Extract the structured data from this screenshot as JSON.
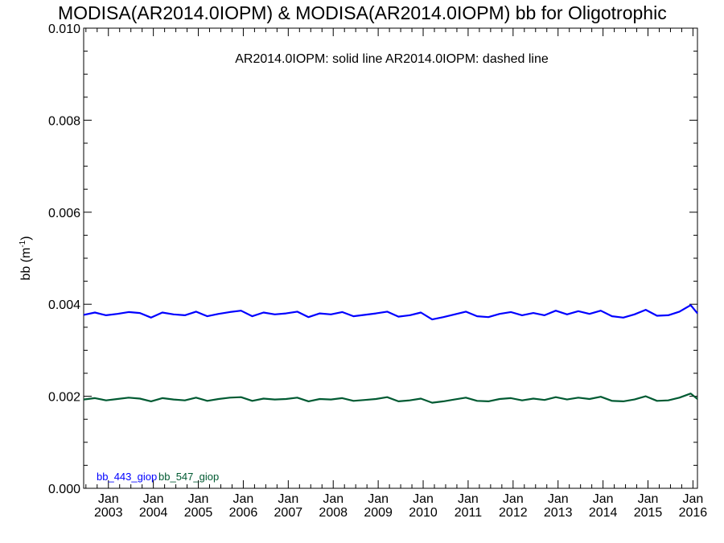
{
  "chart_data": {
    "type": "line",
    "title": "MODISA(AR2014.0IOPM) & MODISA(AR2014.0IOPM)  bb for Oligotrophic",
    "annotation": "AR2014.0IOPM: solid line   AR2014.0IOPM: dashed line",
    "ylabel": "bb (m",
    "ylabel_sup": "-1",
    "ylabel_close": ")",
    "xlabel": "",
    "xlim": [
      2002.45,
      2016.1
    ],
    "ylim": [
      0.0,
      0.01
    ],
    "y_ticks": [
      "0.000",
      "0.002",
      "0.004",
      "0.006",
      "0.008",
      "0.010"
    ],
    "x_tick_month": "Jan",
    "x_ticks": [
      "2003",
      "2004",
      "2005",
      "2006",
      "2007",
      "2008",
      "2009",
      "2010",
      "2011",
      "2012",
      "2013",
      "2014",
      "2015",
      "2016"
    ],
    "legend_placement": "bottom-left",
    "grid": false,
    "series": [
      {
        "name": "bb_443_giop",
        "color": "#0000ff",
        "style": "solid",
        "x": [
          2002.45,
          2002.7,
          2002.95,
          2003.2,
          2003.45,
          2003.7,
          2003.95,
          2004.2,
          2004.45,
          2004.7,
          2004.95,
          2005.2,
          2005.45,
          2005.7,
          2005.95,
          2006.2,
          2006.45,
          2006.7,
          2006.95,
          2007.2,
          2007.45,
          2007.7,
          2007.95,
          2008.2,
          2008.45,
          2008.7,
          2008.95,
          2009.2,
          2009.45,
          2009.7,
          2009.95,
          2010.2,
          2010.45,
          2010.7,
          2010.95,
          2011.2,
          2011.45,
          2011.7,
          2011.95,
          2012.2,
          2012.45,
          2012.7,
          2012.95,
          2013.2,
          2013.45,
          2013.7,
          2013.95,
          2014.2,
          2014.45,
          2014.7,
          2014.95,
          2015.2,
          2015.45,
          2015.7,
          2015.95,
          2016.1
        ],
        "values": [
          0.00377,
          0.00382,
          0.00376,
          0.00379,
          0.00383,
          0.00381,
          0.00371,
          0.00382,
          0.00378,
          0.00376,
          0.00384,
          0.00374,
          0.00379,
          0.00383,
          0.00386,
          0.00374,
          0.00382,
          0.00378,
          0.0038,
          0.00384,
          0.00372,
          0.0038,
          0.00378,
          0.00383,
          0.00374,
          0.00377,
          0.0038,
          0.00384,
          0.00373,
          0.00376,
          0.00382,
          0.00367,
          0.00372,
          0.00378,
          0.00384,
          0.00374,
          0.00372,
          0.00379,
          0.00383,
          0.00376,
          0.00381,
          0.00376,
          0.00386,
          0.00378,
          0.00385,
          0.00379,
          0.00386,
          0.00374,
          0.00371,
          0.00378,
          0.00388,
          0.00375,
          0.00376,
          0.00384,
          0.00398,
          0.0038
        ]
      },
      {
        "name": "bb_547_giop",
        "color": "#005a32",
        "style": "solid",
        "x": [
          2002.45,
          2002.7,
          2002.95,
          2003.2,
          2003.45,
          2003.7,
          2003.95,
          2004.2,
          2004.45,
          2004.7,
          2004.95,
          2005.2,
          2005.45,
          2005.7,
          2005.95,
          2006.2,
          2006.45,
          2006.7,
          2006.95,
          2007.2,
          2007.45,
          2007.7,
          2007.95,
          2008.2,
          2008.45,
          2008.7,
          2008.95,
          2009.2,
          2009.45,
          2009.7,
          2009.95,
          2010.2,
          2010.45,
          2010.7,
          2010.95,
          2011.2,
          2011.45,
          2011.7,
          2011.95,
          2012.2,
          2012.45,
          2012.7,
          2012.95,
          2013.2,
          2013.45,
          2013.7,
          2013.95,
          2014.2,
          2014.45,
          2014.7,
          2014.95,
          2015.2,
          2015.45,
          2015.7,
          2015.95,
          2016.1
        ],
        "values": [
          0.00193,
          0.00196,
          0.00191,
          0.00194,
          0.00197,
          0.00195,
          0.00189,
          0.00196,
          0.00193,
          0.00191,
          0.00197,
          0.0019,
          0.00194,
          0.00197,
          0.00198,
          0.0019,
          0.00195,
          0.00193,
          0.00194,
          0.00197,
          0.00189,
          0.00194,
          0.00193,
          0.00196,
          0.0019,
          0.00192,
          0.00194,
          0.00198,
          0.00189,
          0.00191,
          0.00195,
          0.00186,
          0.00189,
          0.00193,
          0.00197,
          0.0019,
          0.00189,
          0.00194,
          0.00196,
          0.00191,
          0.00195,
          0.00192,
          0.00198,
          0.00193,
          0.00197,
          0.00194,
          0.00199,
          0.0019,
          0.00189,
          0.00193,
          0.002,
          0.0019,
          0.00191,
          0.00197,
          0.00206,
          0.00194
        ]
      }
    ]
  }
}
